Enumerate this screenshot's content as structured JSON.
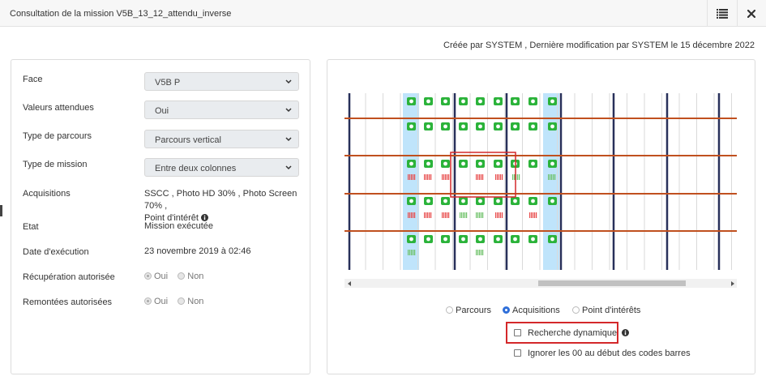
{
  "window": {
    "title": "Consultation de la mission V5B_13_12_attendu_inverse",
    "list_icon": "list-icon",
    "close_icon": "close-icon"
  },
  "meta_text": "Créée par SYSTEM , Dernière modification par SYSTEM le 15 décembre 2022",
  "form": {
    "face_label": "Face",
    "face_value": "V5B P",
    "valeurs_label": "Valeurs attendues",
    "valeurs_value": "Oui",
    "type_parcours_label": "Type de parcours",
    "type_parcours_value": "Parcours vertical",
    "type_mission_label": "Type de mission",
    "type_mission_value": "Entre deux colonnes",
    "acquisitions_label": "Acquisitions",
    "acquisitions_line1": "SSCC , Photo HD 30% , Photo Screen 70% ,",
    "acquisitions_line2": "Point d'intérêt",
    "etat_label": "Etat",
    "etat_value": "Mission exécutée",
    "date_label": "Date d'exécution",
    "date_value": "23 novembre 2019 à 02:46",
    "recup_label": "Récupération autorisée",
    "remontees_label": "Remontées autorisées",
    "oui": "Oui",
    "non": "Non"
  },
  "view_options": {
    "parcours": "Parcours",
    "acquisitions": "Acquisitions",
    "points": "Point d'intérêts",
    "selected": "Acquisitions",
    "recherche": "Recherche dynamique",
    "ignorer": "Ignorer les 00 au début des codes barres"
  },
  "colors": {
    "camera": "#2bb33a",
    "shelf": "#c0501f",
    "column": "#28305a",
    "highlight": "#bfe4fb",
    "barcode_red": "#e84a4a",
    "barcode_green": "#6cc167",
    "annotation": "#d4282a"
  }
}
